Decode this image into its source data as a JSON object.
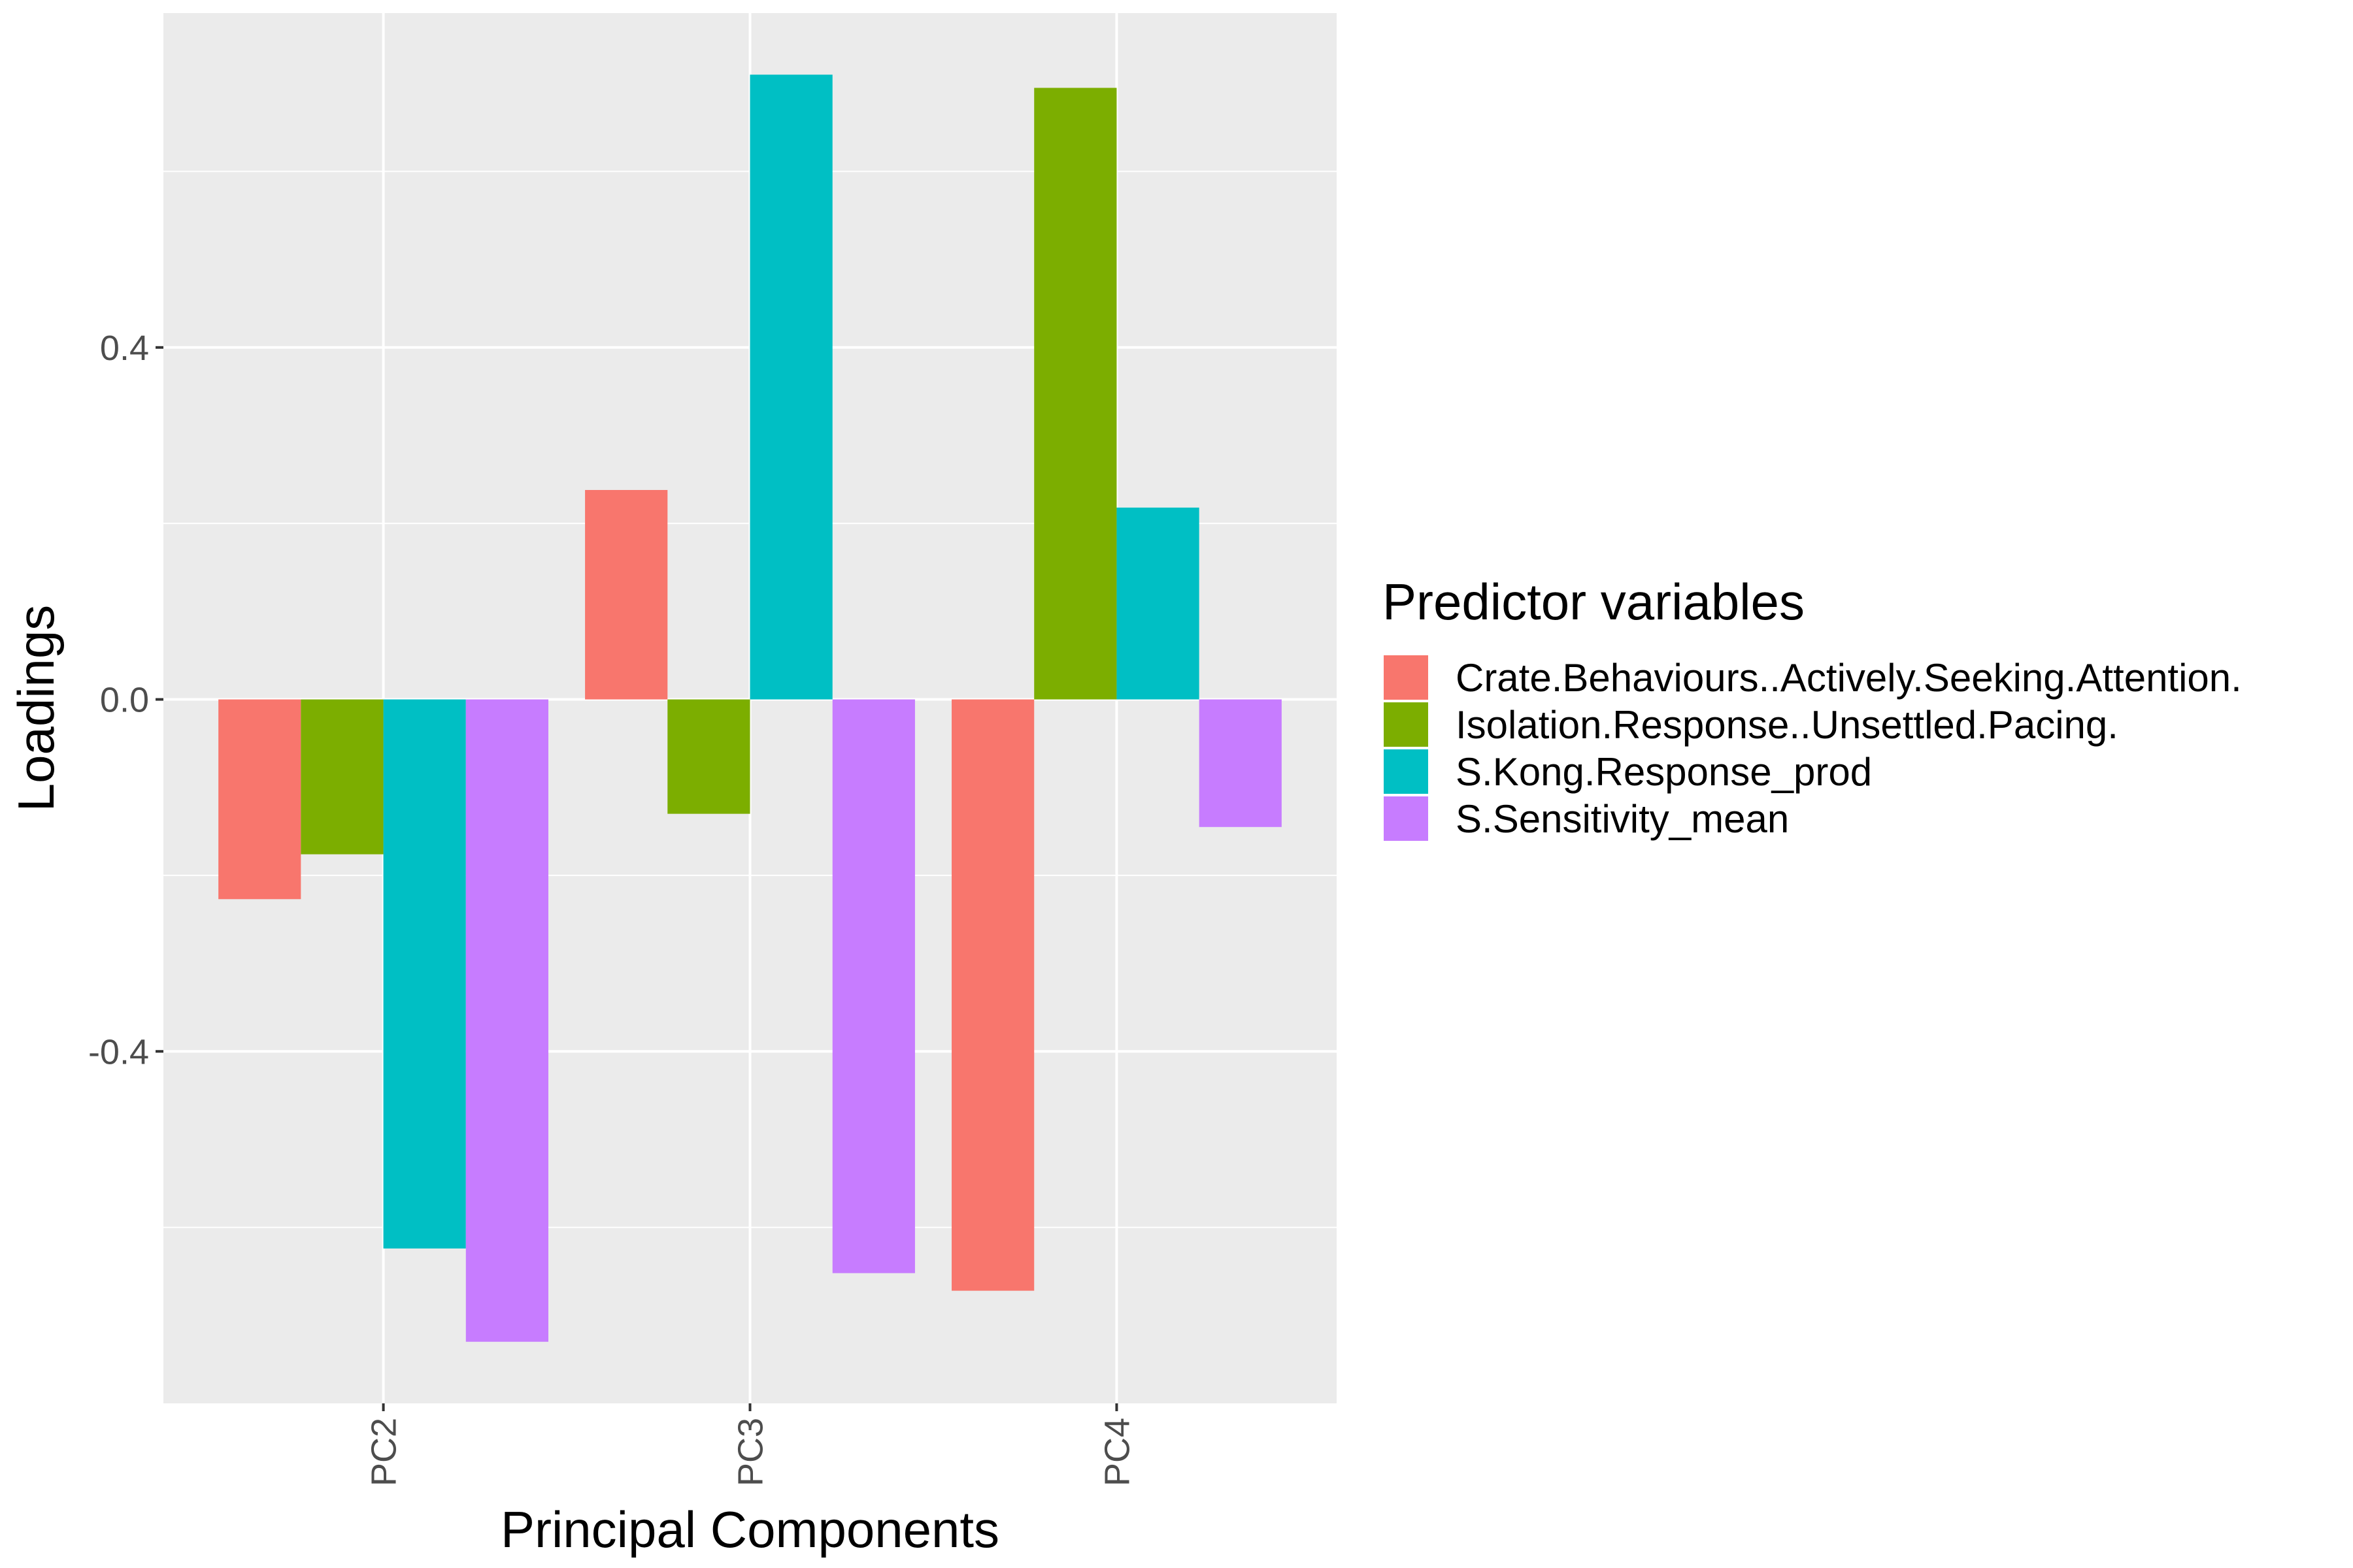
{
  "chart_data": {
    "type": "bar",
    "categories": [
      "PC2",
      "PC3",
      "PC4"
    ],
    "xlabel": "Principal Components",
    "ylabel": "Loadings",
    "ylim": [
      -0.8,
      0.78
    ],
    "yticks": [
      -0.4,
      0.0,
      0.4
    ],
    "ytick_labels": [
      "-0.4",
      "0.0",
      "0.4"
    ],
    "grid": true,
    "legend": {
      "title": "Predictor variables",
      "placement": "right"
    },
    "series": [
      {
        "name": "Crate.Behaviours..Actively.Seeking.Attention.",
        "color": "#F8766D",
        "values": [
          -0.227,
          0.238,
          -0.672
        ]
      },
      {
        "name": "Isolation.Response..Unsettled.Pacing.",
        "color": "#7CAE00",
        "values": [
          -0.176,
          -0.13,
          0.695
        ]
      },
      {
        "name": "S.Kong.Response_prod",
        "color": "#00BFC4",
        "values": [
          -0.624,
          0.71,
          0.218
        ]
      },
      {
        "name": "S.Sensitivity_mean",
        "color": "#C77CFF",
        "values": [
          -0.73,
          -0.652,
          -0.145
        ]
      }
    ]
  }
}
